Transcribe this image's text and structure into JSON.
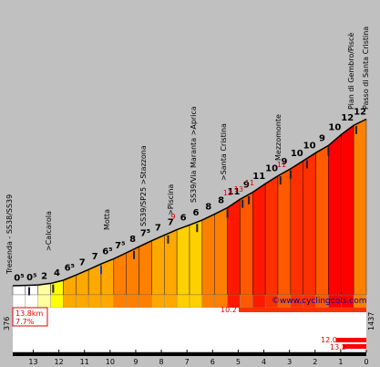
{
  "chart_data": {
    "type": "area",
    "xlabel": "",
    "ylabel": "",
    "km_ticks": [
      "13",
      "12",
      "11",
      "10",
      "9",
      "8",
      "7",
      "6",
      "5",
      "4",
      "3",
      "2",
      "1",
      "0"
    ],
    "altitudes": [
      "376",
      "378",
      "381",
      "391",
      "411",
      "444",
      "479",
      "515",
      "548",
      "586",
      "625",
      "663",
      "698",
      "733",
      "763",
      "794",
      "833",
      "873",
      "927",
      "971",
      "1026",
      "1076",
      "1121",
      "1172",
      "1223",
      "1269",
      "1338",
      "1398",
      "1437"
    ],
    "gradient_labels": [
      "0⁵",
      "0⁵",
      "2",
      "4",
      "6⁵",
      "7",
      "7",
      "6⁵",
      "7⁵",
      "8",
      "7⁵",
      "7",
      "7",
      "6",
      "6",
      "8",
      "8",
      "11",
      "9",
      "11",
      "10",
      "9",
      "10",
      "10",
      "9",
      "10",
      "12",
      "12"
    ],
    "red_gradient_labels": [
      "9",
      "13",
      "13",
      "11",
      "11"
    ],
    "locations": [
      "Tresenda - SS38/SS39",
      ">Calcarola",
      "Motta",
      "SS39/SP25 >Stazzona",
      ">Piscina",
      "SS39/Via Maranta >Aprica",
      ">Santa Cristina",
      "Mezzomonte",
      "Pian di Gembro/Piscè",
      "Passo di Santa Cristina"
    ],
    "stats": {
      "distance": "13.8km",
      "avg_gradient": "7.7%",
      "bar1": "10.2",
      "bar2": "12.0",
      "bar3": "13.2"
    },
    "watermark": "©www.cyclingcols.com"
  }
}
